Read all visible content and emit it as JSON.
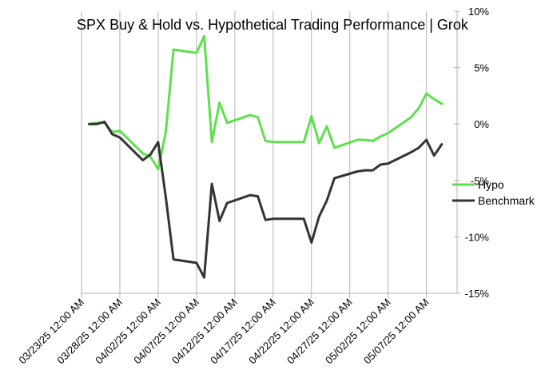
{
  "chart_data": {
    "type": "line",
    "title": "SPX Buy & Hold vs. Hypothetical Trading Performance | Grok",
    "xlabel": "",
    "ylabel": "",
    "ylim": [
      -15,
      10
    ],
    "xlim": [
      "03/23/25",
      "05/11/25"
    ],
    "grid": "vertical",
    "legend_position": "right",
    "x_tick_labels": [
      "03/23/25 12:00 AM",
      "03/28/25 12:00 AM",
      "04/02/25 12:00 AM",
      "04/07/25 12:00 AM",
      "04/12/25 12:00 AM",
      "04/17/25 12:00 AM",
      "04/22/25 12:00 AM",
      "04/27/25 12:00 AM",
      "05/02/25 12:00 AM",
      "05/07/25 12:00 AM"
    ],
    "y_tick_labels": [
      "10%",
      "5%",
      "0%",
      "-5%",
      "-10%",
      "-15%"
    ],
    "x": [
      "03/24/25",
      "03/25/25",
      "03/26/25",
      "03/27/25",
      "03/28/25",
      "03/31/25",
      "04/01/25",
      "04/02/25",
      "04/03/25",
      "04/04/25",
      "04/07/25",
      "04/08/25",
      "04/09/25",
      "04/10/25",
      "04/11/25",
      "04/14/25",
      "04/15/25",
      "04/16/25",
      "04/17/25",
      "04/21/25",
      "04/22/25",
      "04/23/25",
      "04/24/25",
      "04/25/25",
      "04/28/25",
      "04/29/25",
      "04/30/25",
      "05/01/25",
      "05/02/25",
      "05/05/25",
      "05/06/25",
      "05/07/25",
      "05/08/25",
      "05/09/25"
    ],
    "series": [
      {
        "name": "Hypo",
        "color": "#5ee04e",
        "values": [
          0.0,
          0.1,
          0.1,
          -0.7,
          -0.6,
          -2.6,
          -2.9,
          -4.0,
          -0.7,
          6.6,
          6.3,
          7.8,
          -1.6,
          1.9,
          0.1,
          0.8,
          0.6,
          -1.5,
          -1.6,
          -1.6,
          0.7,
          -1.7,
          -0.2,
          -2.1,
          -1.4,
          -1.4,
          -1.5,
          -1.1,
          -0.8,
          0.6,
          1.4,
          2.7,
          2.2,
          1.8
        ]
      },
      {
        "name": "Benchmark",
        "color": "#333333",
        "values": [
          0.0,
          0.0,
          0.2,
          -0.9,
          -1.2,
          -3.2,
          -2.7,
          -1.6,
          -6.5,
          -12.0,
          -12.3,
          -13.6,
          -5.3,
          -8.6,
          -7.0,
          -6.3,
          -6.4,
          -8.5,
          -8.4,
          -8.4,
          -10.5,
          -8.2,
          -6.8,
          -4.8,
          -4.2,
          -4.1,
          -4.1,
          -3.6,
          -3.5,
          -2.5,
          -2.1,
          -1.4,
          -2.8,
          -1.8
        ]
      }
    ]
  }
}
